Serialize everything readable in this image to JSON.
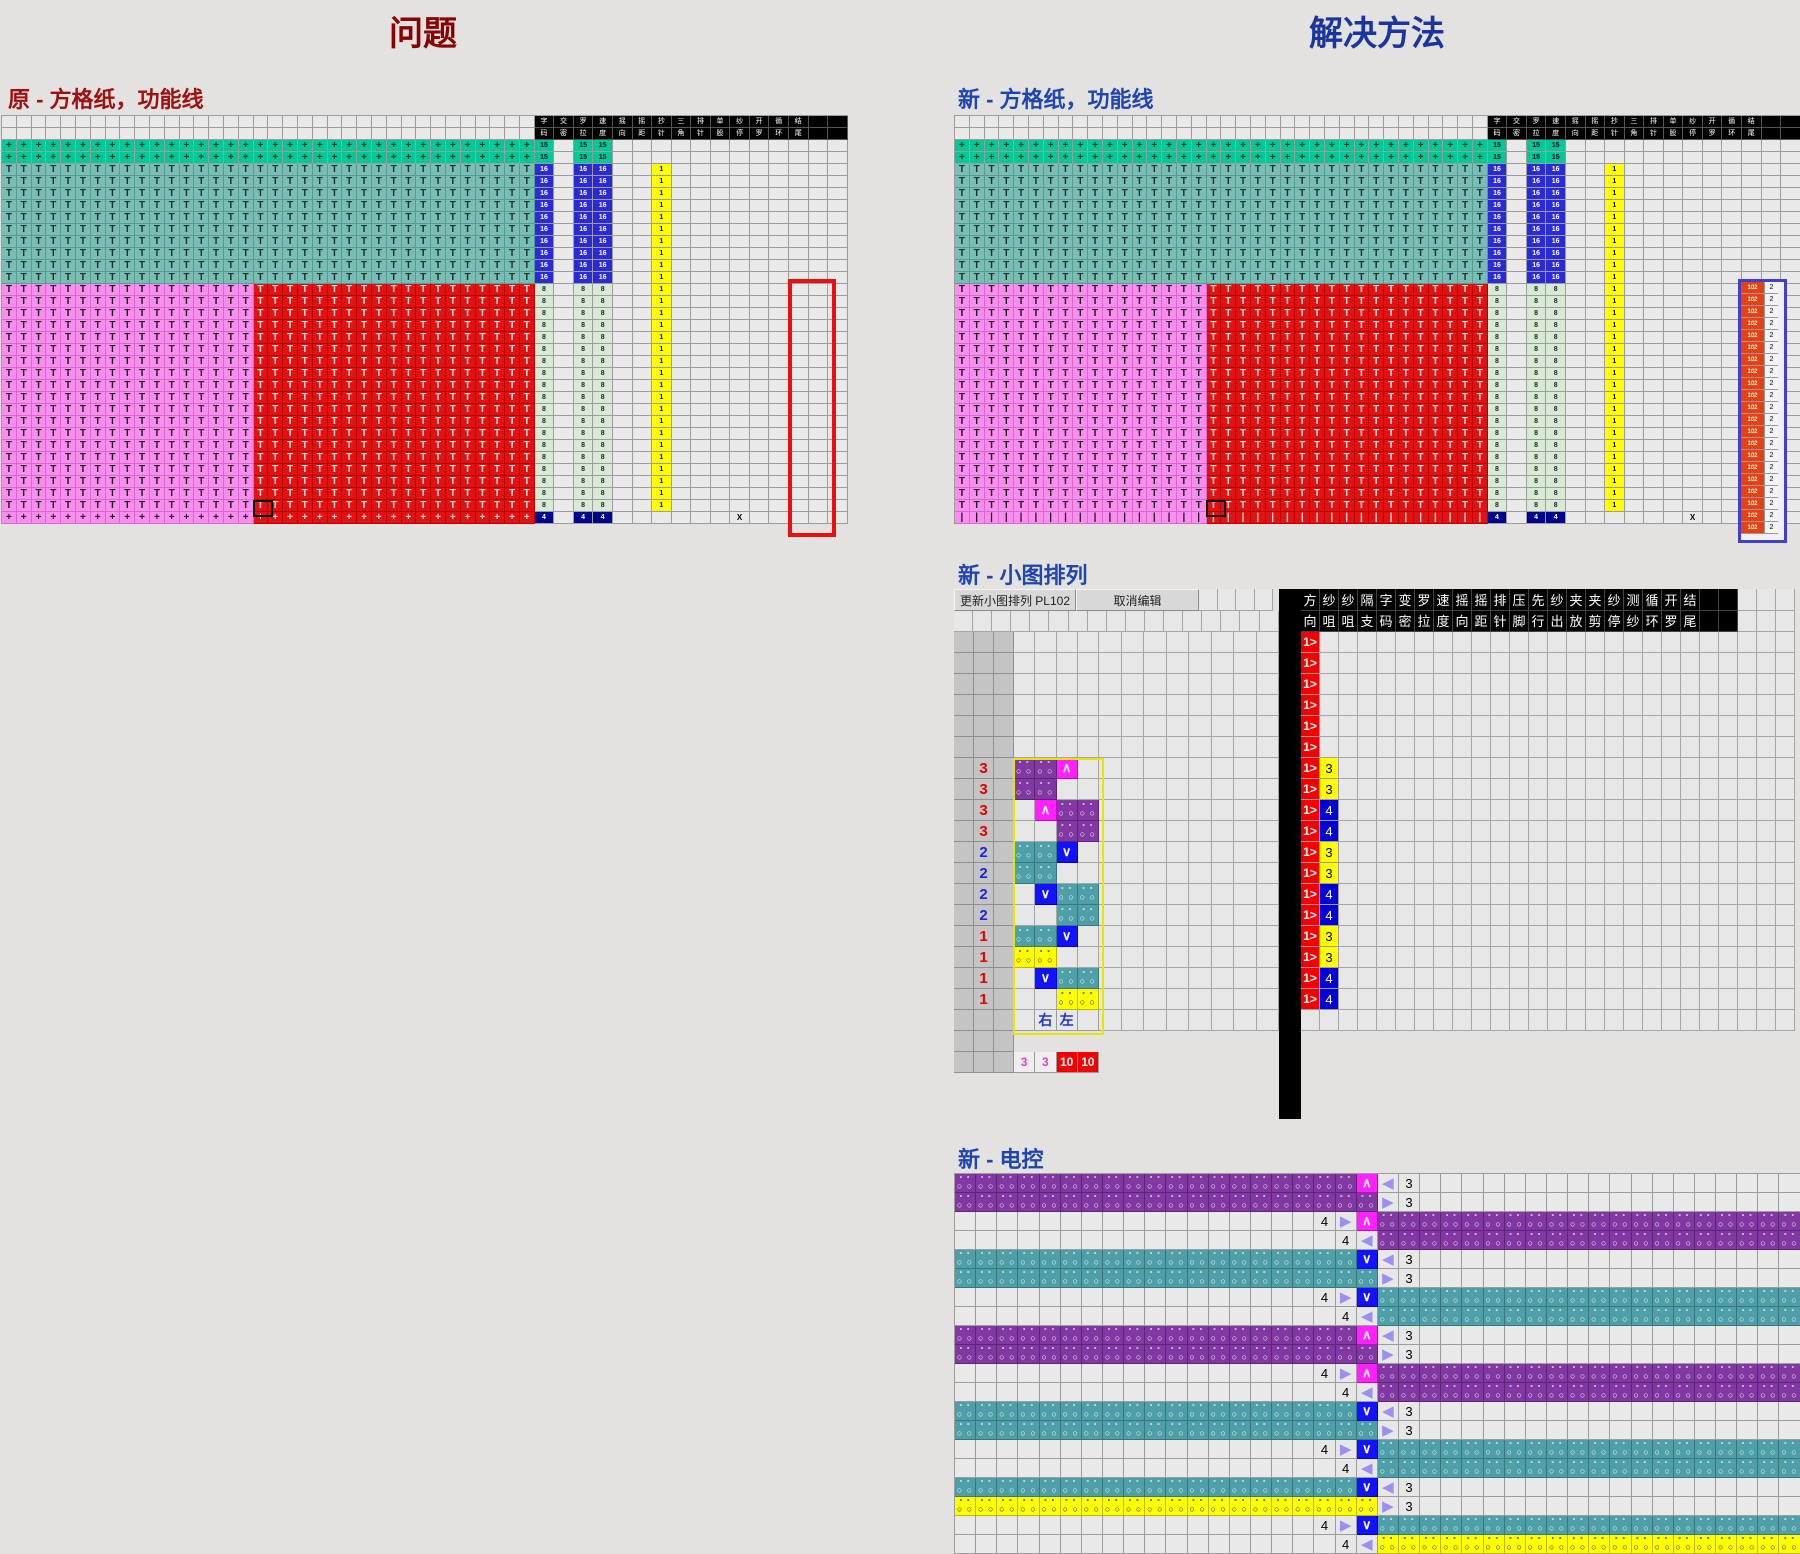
{
  "titles": {
    "problem": "问题",
    "solution": "解决方法"
  },
  "section_labels": {
    "left_chart": "原 - 方格纸，功能线",
    "right_chart": "新 - 方格纸，功能线",
    "middle": "新 - 小图排列",
    "bottom": "新 - 电控"
  },
  "colors": {
    "problem_title": "#8b0000",
    "solution_title": "#1a35a0",
    "cast_teal": "#00c896",
    "rib_teal": "#79bdb5",
    "pink": "#fb8cf0",
    "red": "#e01212",
    "value_blue": "#2b2bd5",
    "value_green": "#d8ead4",
    "value_navy": "#00038f",
    "yellow": "#ffff00",
    "purple": "#8238a2",
    "small_teal": "#4e9fa8",
    "magenta": "#ff22ff",
    "blue_stitch": "#1212ff",
    "direction_red": "#f50000",
    "highlight_red": "#ea1010",
    "highlight_blue": "#4040cc",
    "triangle": "#9b8ff0"
  },
  "grid_chart": {
    "pattern_cols": 36,
    "pink_cols": 17,
    "func_headers": [
      "字码",
      "交密",
      "罗拉",
      "速度",
      "摇向",
      "摇距",
      "抄针",
      "三角",
      "排针",
      "单股",
      "纱停",
      "开罗",
      "循环",
      "结尾",
      "",
      ""
    ],
    "groups": [
      {
        "kind": "header",
        "rows": 2
      },
      {
        "kind": "cast",
        "rows": 2,
        "symbol": "+",
        "value": "15",
        "vstyle": "v15",
        "vcols": [
          0,
          2,
          3
        ]
      },
      {
        "kind": "rib",
        "rows": 10,
        "symbol": "T",
        "value": "16",
        "vstyle": "v16",
        "vcols": [
          0,
          2,
          3
        ],
        "extra": {
          "col": 6,
          "value": "1",
          "style": "v1"
        }
      },
      {
        "kind": "body",
        "rows": 19,
        "symbol": "T",
        "value": "8",
        "vstyle": "v8",
        "vcols": [
          0,
          2,
          3
        ],
        "extra": {
          "col": 6,
          "value": "1",
          "style": "v1"
        }
      },
      {
        "kind": "base",
        "rows": 1,
        "value": "4",
        "vstyle": "v4",
        "vcols": [
          0,
          2,
          3
        ],
        "extra": {
          "col": 10,
          "value": "X",
          "style": "vx"
        }
      }
    ],
    "base_symbol_left": "+",
    "base_symbol_right": "|"
  },
  "right_chart": {
    "ctrl": {
      "value": "102",
      "sub": "2",
      "rows": 21
    }
  },
  "middle_panel": {
    "buttons": [
      {
        "label": "更新小图排列 PL102"
      },
      {
        "label": "取消编辑"
      }
    ],
    "col_headers": [
      "方向",
      "纱咀",
      "纱咀",
      "隔支",
      "字码",
      "变密",
      "罗拉",
      "速度",
      "摇向",
      "摇距",
      "排针",
      "压脚",
      "先行",
      "纱出",
      "夹放",
      "夹剪",
      "纱停",
      "测纱",
      "循环",
      "开罗",
      "结尾"
    ],
    "direction_symbol": "1>",
    "lead_rows": 6,
    "rows": [
      {
        "label": "3",
        "lcolor": "red",
        "cells": "PPA.",
        "yarn": "3"
      },
      {
        "label": "3",
        "lcolor": "red",
        "cells": "PP..",
        "yarn": "3"
      },
      {
        "label": "3",
        "lcolor": "red",
        "cells": ".APP",
        "yarn": "4"
      },
      {
        "label": "3",
        "lcolor": "red",
        "cells": "..PP",
        "yarn": "4"
      },
      {
        "label": "2",
        "lcolor": "blue",
        "cells": "TTV.",
        "yarn": "3"
      },
      {
        "label": "2",
        "lcolor": "blue",
        "cells": "TT..",
        "yarn": "3"
      },
      {
        "label": "2",
        "lcolor": "blue",
        "cells": ".VTT",
        "yarn": "4"
      },
      {
        "label": "2",
        "lcolor": "blue",
        "cells": "..TT",
        "yarn": "4"
      },
      {
        "label": "1",
        "lcolor": "red",
        "cells": "TTV.",
        "yarn": "3"
      },
      {
        "label": "1",
        "lcolor": "red",
        "cells": "YY..",
        "yarn": "3"
      },
      {
        "label": "1",
        "lcolor": "red",
        "cells": ".VTT",
        "yarn": "4"
      },
      {
        "label": "1",
        "lcolor": "red",
        "cells": "..YY",
        "yarn": "4"
      }
    ],
    "footer": {
      "right_label": "右",
      "left_label": "左",
      "values": [
        "3",
        "3",
        "10",
        "10"
      ]
    }
  },
  "bottom_panel": {
    "rows": [
      {
        "pos": "L1",
        "color": "P",
        "special": "A",
        "num": "3"
      },
      {
        "pos": "L2",
        "color": "P",
        "num": "3"
      },
      {
        "pos": "R1",
        "color": "P",
        "special": "A",
        "num": "4"
      },
      {
        "pos": "R2",
        "color": "P",
        "num": "4"
      },
      {
        "pos": "L1",
        "color": "T",
        "special": "V",
        "num": "3"
      },
      {
        "pos": "L2",
        "color": "T",
        "num": "3"
      },
      {
        "pos": "R1",
        "color": "T",
        "special": "V",
        "num": "4"
      },
      {
        "pos": "R2",
        "color": "T",
        "num": "4"
      },
      {
        "pos": "L1",
        "color": "P",
        "special": "A",
        "num": "3"
      },
      {
        "pos": "L2",
        "color": "P",
        "num": "3"
      },
      {
        "pos": "R1",
        "color": "P",
        "special": "A",
        "num": "4"
      },
      {
        "pos": "R2",
        "color": "P",
        "num": "4"
      },
      {
        "pos": "L1",
        "color": "T",
        "special": "V",
        "num": "3"
      },
      {
        "pos": "L2",
        "color": "T",
        "num": "3"
      },
      {
        "pos": "R1",
        "color": "T",
        "special": "V",
        "num": "4"
      },
      {
        "pos": "R2",
        "color": "T",
        "num": "4"
      },
      {
        "pos": "L1",
        "color": "T",
        "special": "V",
        "num": "3"
      },
      {
        "pos": "L2",
        "color": "Y",
        "num": "3"
      },
      {
        "pos": "R1",
        "color": "T",
        "special": "V",
        "num": "4"
      },
      {
        "pos": "R2",
        "color": "Y",
        "num": "4"
      }
    ]
  }
}
